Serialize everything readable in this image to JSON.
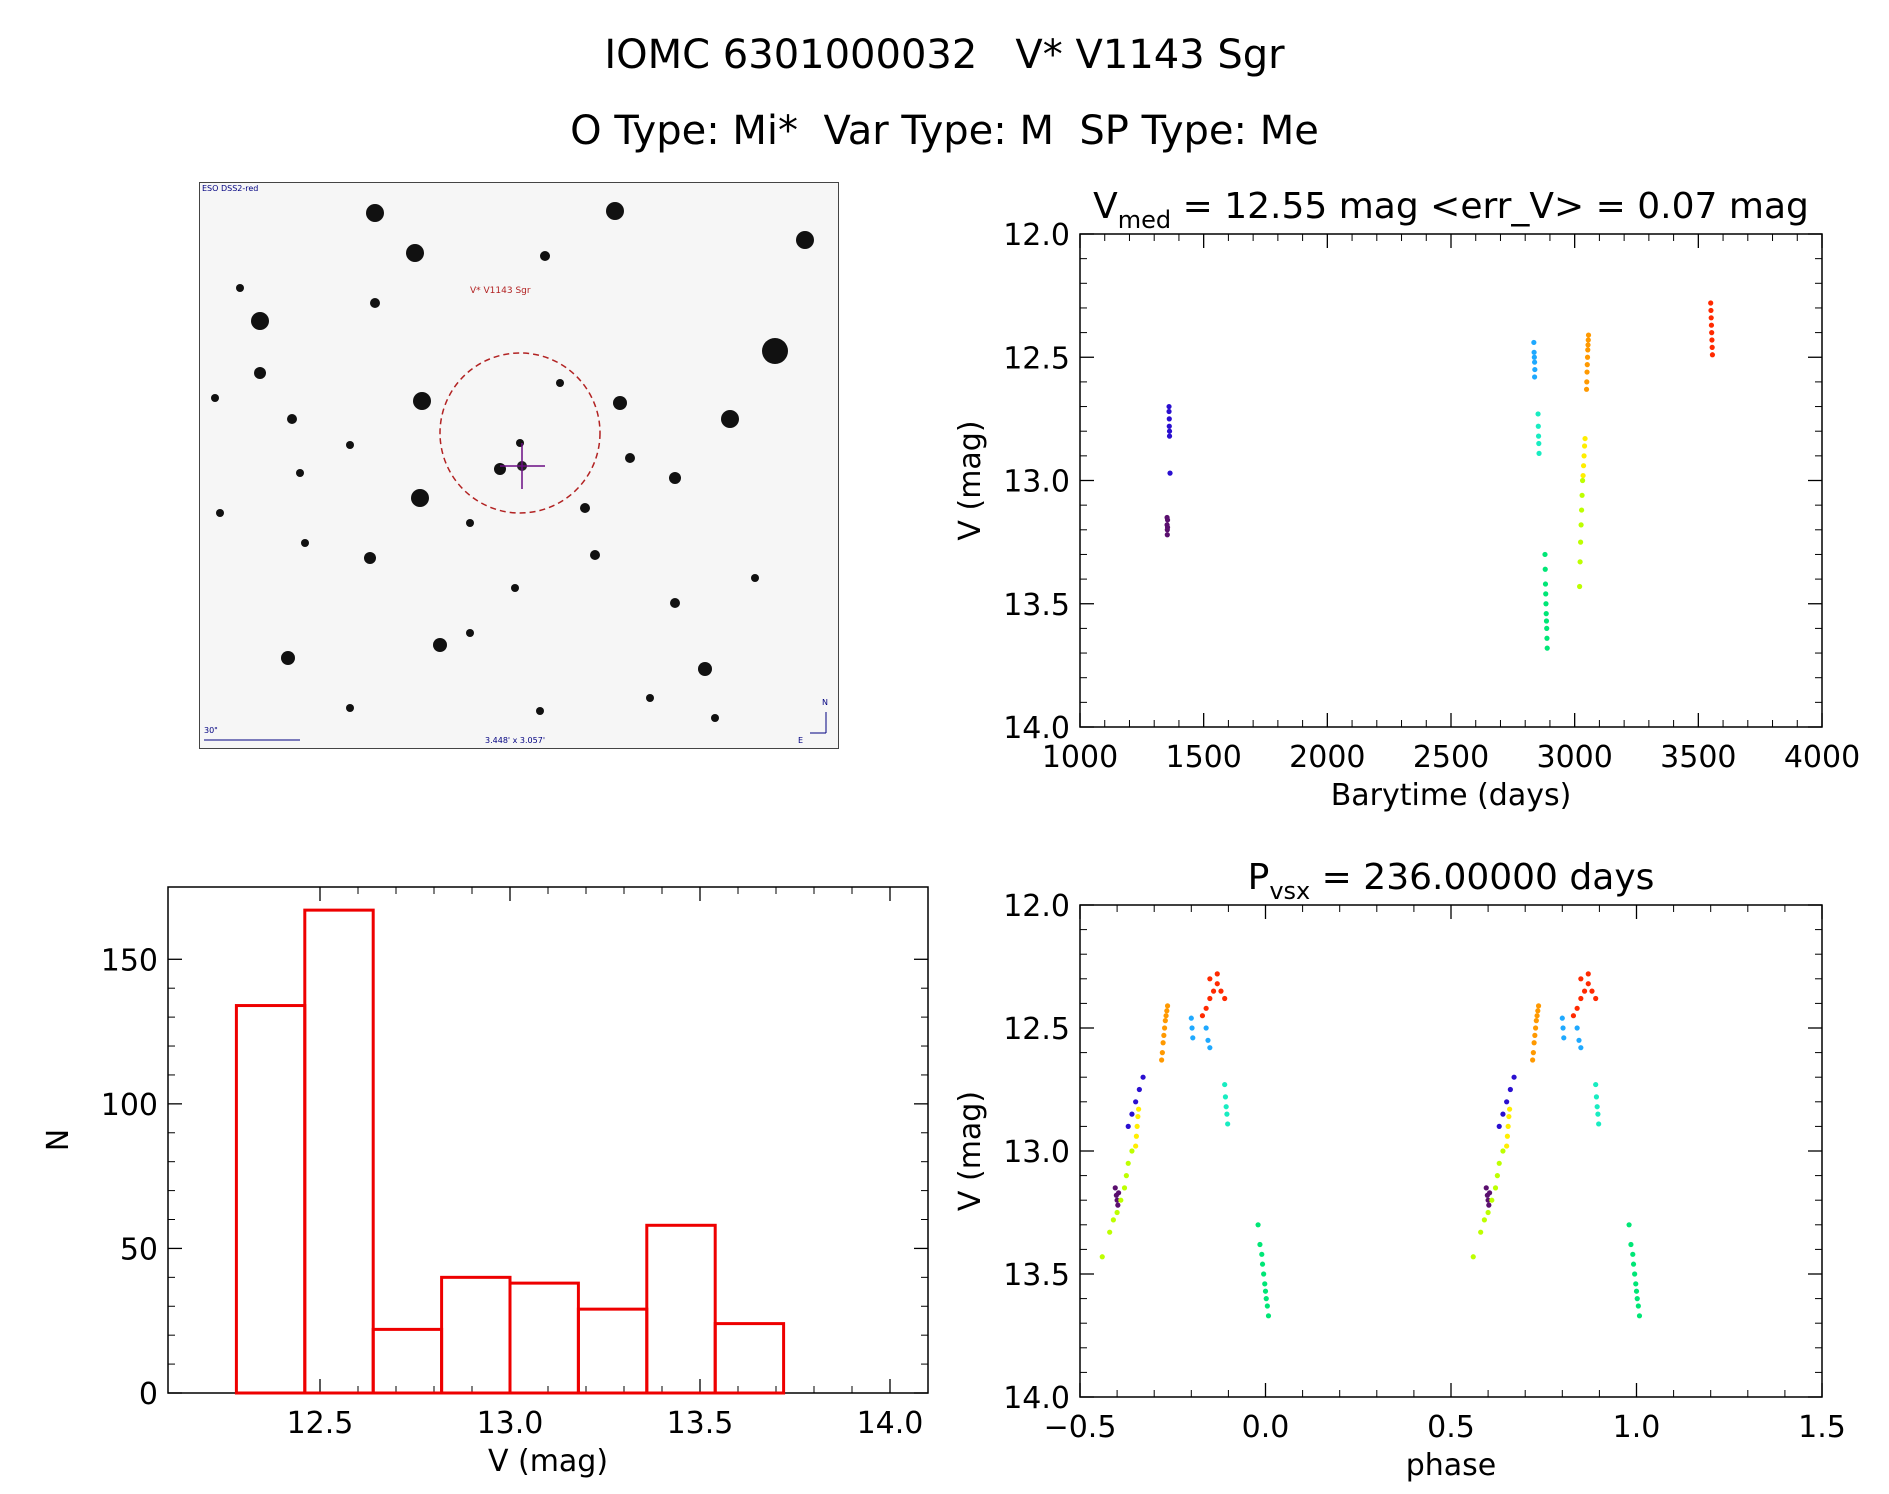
{
  "header": {
    "line1": "IOMC 6301000032   V* V1143 Sgr",
    "line2": "O Type: Mi*  Var Type: M  SP Type: Me"
  },
  "thumbnail": {
    "survey_label": "ESO DSS2-red",
    "target_label": "V* V1143 Sgr",
    "scale_label": "30\"",
    "size_label": "3.448' x 3.057'",
    "north_label": "N",
    "east_label": "E"
  },
  "colors": {
    "histogram": "#ee0000",
    "circle": "#b22222",
    "crosshair": "#6a0d83",
    "thumb_text": "#000080",
    "palette": [
      "#5a0f6e",
      "#2a0fd0",
      "#bdff00",
      "#ffee00",
      "#00e676",
      "#18ecc1",
      "#1fa9ff",
      "#ff9900",
      "#ff2a00"
    ]
  },
  "chart_data": [
    {
      "id": "lightcurve",
      "type": "scatter",
      "title": "V_med = 12.55 mag <err_V> = 0.07 mag",
      "title_parts": {
        "pre": "V",
        "sub": "med",
        "post": " = 12.55 mag <err_V> = 0.07 mag"
      },
      "xlabel": "Barytime (days)",
      "ylabel": "V (mag)",
      "xlim": [
        1000,
        4000
      ],
      "ylim": [
        14.0,
        12.0
      ],
      "xticks": [
        1000,
        1500,
        2000,
        2500,
        3000,
        3500,
        4000
      ],
      "xtick_labels": [
        "1000",
        "1500",
        "2000",
        "2500",
        "3000",
        "3500",
        "4000"
      ],
      "yticks": [
        12.0,
        12.5,
        13.0,
        13.5,
        14.0
      ],
      "ytick_labels": [
        "12.0",
        "12.5",
        "13.0",
        "13.5",
        "14.0"
      ],
      "series": [
        {
          "color_index": 0,
          "x": [
            1352,
            1352,
            1353,
            1353,
            1354,
            1354
          ],
          "y": [
            13.15,
            13.18,
            13.2,
            13.22,
            13.16,
            13.19
          ]
        },
        {
          "color_index": 1,
          "x": [
            1360,
            1360,
            1361,
            1361,
            1362,
            1362,
            1364
          ],
          "y": [
            12.7,
            12.72,
            12.75,
            12.78,
            12.8,
            12.82,
            12.97
          ]
        },
        {
          "color_index": 6,
          "x": [
            2835,
            2836,
            2837,
            2838,
            2839,
            2838
          ],
          "y": [
            12.44,
            12.48,
            12.5,
            12.52,
            12.55,
            12.58
          ]
        },
        {
          "color_index": 5,
          "x": [
            2852,
            2853,
            2854,
            2855,
            2856
          ],
          "y": [
            12.73,
            12.78,
            12.82,
            12.85,
            12.89
          ]
        },
        {
          "color_index": 4,
          "x": [
            2880,
            2881,
            2882,
            2883,
            2884,
            2885,
            2886,
            2887,
            2888,
            2889
          ],
          "y": [
            13.3,
            13.36,
            13.42,
            13.46,
            13.5,
            13.54,
            13.57,
            13.6,
            13.64,
            13.68
          ]
        },
        {
          "color_index": 2,
          "x": [
            3020,
            3022,
            3024,
            3026,
            3028,
            3030,
            3032
          ],
          "y": [
            13.43,
            13.33,
            13.25,
            13.18,
            13.12,
            13.06,
            13.0
          ]
        },
        {
          "color_index": 3,
          "x": [
            3034,
            3036,
            3038,
            3040,
            3042
          ],
          "y": [
            12.98,
            12.94,
            12.9,
            12.86,
            12.83
          ]
        },
        {
          "color_index": 7,
          "x": [
            3048,
            3049,
            3050,
            3051,
            3052,
            3053,
            3054,
            3055,
            3056
          ],
          "y": [
            12.63,
            12.6,
            12.56,
            12.53,
            12.5,
            12.47,
            12.45,
            12.43,
            12.41
          ]
        },
        {
          "color_index": 8,
          "x": [
            3550,
            3551,
            3552,
            3553,
            3554,
            3555,
            3556,
            3557
          ],
          "y": [
            12.28,
            12.31,
            12.34,
            12.37,
            12.4,
            12.43,
            12.46,
            12.49
          ]
        }
      ]
    },
    {
      "id": "histogram",
      "type": "bar",
      "title": "",
      "xlabel": "V (mag)",
      "ylabel": "N",
      "xlim": [
        12.1,
        14.1
      ],
      "ylim": [
        0,
        175
      ],
      "xticks": [
        12.5,
        13.0,
        13.5,
        14.0
      ],
      "xtick_labels": [
        "12.5",
        "13.0",
        "13.5",
        "14.0"
      ],
      "yticks": [
        0,
        50,
        100,
        150
      ],
      "ytick_labels": [
        "0",
        "50",
        "100",
        "150"
      ],
      "bin_edges": [
        12.28,
        12.46,
        12.64,
        12.82,
        13.0,
        13.18,
        13.36,
        13.54,
        13.72
      ],
      "values": [
        134,
        167,
        22,
        40,
        38,
        29,
        58,
        24
      ]
    },
    {
      "id": "phased",
      "type": "scatter",
      "title": "P_vsx = 236.00000 days",
      "title_parts": {
        "pre": "P",
        "sub": "vsx",
        "post": " = 236.00000 days"
      },
      "xlabel": "phase",
      "ylabel": "V (mag)",
      "xlim": [
        -0.5,
        1.5
      ],
      "ylim": [
        14.0,
        12.0
      ],
      "xticks": [
        -0.5,
        0.0,
        0.5,
        1.0,
        1.5
      ],
      "xtick_labels": [
        "−0.5",
        "0.0",
        "0.5",
        "1.0",
        "1.5"
      ],
      "yticks": [
        12.0,
        12.5,
        13.0,
        13.5,
        14.0
      ],
      "ytick_labels": [
        "12.0",
        "12.5",
        "13.0",
        "13.5",
        "14.0"
      ],
      "series": [
        {
          "color_index": 0,
          "x": [
            -0.405,
            -0.402,
            -0.4,
            -0.398,
            -0.396
          ],
          "y": [
            13.15,
            13.18,
            13.2,
            13.22,
            13.17
          ]
        },
        {
          "color_index": 1,
          "x": [
            -0.37,
            -0.36,
            -0.35,
            -0.34,
            -0.33
          ],
          "y": [
            12.9,
            12.85,
            12.8,
            12.75,
            12.7
          ]
        },
        {
          "color_index": 2,
          "x": [
            -0.44,
            -0.42,
            -0.41,
            -0.4,
            -0.39,
            -0.38,
            -0.375,
            -0.37,
            -0.36
          ],
          "y": [
            13.43,
            13.33,
            13.28,
            13.25,
            13.2,
            13.15,
            13.1,
            13.05,
            13.0
          ]
        },
        {
          "color_index": 3,
          "x": [
            -0.35,
            -0.348,
            -0.346,
            -0.344,
            -0.342
          ],
          "y": [
            12.98,
            12.94,
            12.9,
            12.86,
            12.83
          ]
        },
        {
          "color_index": 7,
          "x": [
            -0.28,
            -0.278,
            -0.276,
            -0.274,
            -0.272,
            -0.27,
            -0.268,
            -0.266,
            -0.264
          ],
          "y": [
            12.63,
            12.6,
            12.56,
            12.53,
            12.5,
            12.47,
            12.45,
            12.43,
            12.41
          ]
        },
        {
          "color_index": 6,
          "x": [
            -0.2,
            -0.198,
            -0.196,
            -0.16,
            -0.155,
            -0.15
          ],
          "y": [
            12.46,
            12.5,
            12.54,
            12.5,
            12.55,
            12.58
          ]
        },
        {
          "color_index": 8,
          "x": [
            -0.17,
            -0.16,
            -0.15,
            -0.14,
            -0.13,
            -0.12,
            -0.11,
            -0.15,
            -0.13
          ],
          "y": [
            12.45,
            12.42,
            12.38,
            12.35,
            12.32,
            12.35,
            12.38,
            12.3,
            12.28
          ]
        },
        {
          "color_index": 5,
          "x": [
            -0.11,
            -0.108,
            -0.106,
            -0.104,
            -0.102
          ],
          "y": [
            12.73,
            12.78,
            12.82,
            12.85,
            12.89
          ]
        },
        {
          "color_index": 4,
          "x": [
            -0.02,
            -0.015,
            -0.01,
            -0.008,
            -0.005,
            -0.002,
            0.0,
            0.002,
            0.005,
            0.008
          ],
          "y": [
            13.3,
            13.38,
            13.42,
            13.46,
            13.5,
            13.54,
            13.57,
            13.6,
            13.63,
            13.67
          ]
        },
        {
          "color_index": 0,
          "x": [
            0.595,
            0.598,
            0.6,
            0.602,
            0.604
          ],
          "y": [
            13.15,
            13.18,
            13.2,
            13.22,
            13.17
          ]
        },
        {
          "color_index": 1,
          "x": [
            0.63,
            0.64,
            0.65,
            0.66,
            0.67
          ],
          "y": [
            12.9,
            12.85,
            12.8,
            12.75,
            12.7
          ]
        },
        {
          "color_index": 2,
          "x": [
            0.56,
            0.58,
            0.59,
            0.6,
            0.61,
            0.62,
            0.625,
            0.63,
            0.64
          ],
          "y": [
            13.43,
            13.33,
            13.28,
            13.25,
            13.2,
            13.15,
            13.1,
            13.05,
            13.0
          ]
        },
        {
          "color_index": 3,
          "x": [
            0.65,
            0.652,
            0.654,
            0.656,
            0.658
          ],
          "y": [
            12.98,
            12.94,
            12.9,
            12.86,
            12.83
          ]
        },
        {
          "color_index": 7,
          "x": [
            0.72,
            0.722,
            0.724,
            0.726,
            0.728,
            0.73,
            0.732,
            0.734,
            0.736
          ],
          "y": [
            12.63,
            12.6,
            12.56,
            12.53,
            12.5,
            12.47,
            12.45,
            12.43,
            12.41
          ]
        },
        {
          "color_index": 6,
          "x": [
            0.8,
            0.802,
            0.804,
            0.84,
            0.845,
            0.85
          ],
          "y": [
            12.46,
            12.5,
            12.54,
            12.5,
            12.55,
            12.58
          ]
        },
        {
          "color_index": 8,
          "x": [
            0.83,
            0.84,
            0.85,
            0.86,
            0.87,
            0.88,
            0.89,
            0.85,
            0.87
          ],
          "y": [
            12.45,
            12.42,
            12.38,
            12.35,
            12.32,
            12.35,
            12.38,
            12.3,
            12.28
          ]
        },
        {
          "color_index": 5,
          "x": [
            0.89,
            0.892,
            0.894,
            0.896,
            0.898
          ],
          "y": [
            12.73,
            12.78,
            12.82,
            12.85,
            12.89
          ]
        },
        {
          "color_index": 4,
          "x": [
            0.98,
            0.985,
            0.99,
            0.992,
            0.995,
            0.998,
            1.0,
            1.002,
            1.005,
            1.008
          ],
          "y": [
            13.3,
            13.38,
            13.42,
            13.46,
            13.5,
            13.54,
            13.57,
            13.6,
            13.63,
            13.67
          ]
        }
      ]
    }
  ]
}
